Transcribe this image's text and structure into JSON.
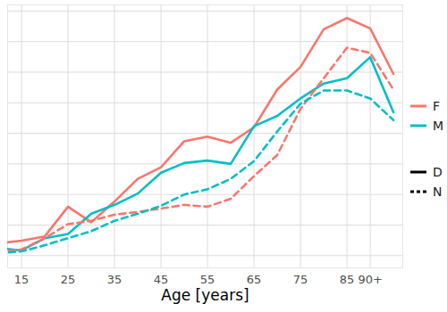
{
  "chart_data": {
    "type": "line",
    "x_label": "Age [years]",
    "x": [
      10,
      15,
      20,
      25,
      30,
      35,
      40,
      45,
      50,
      55,
      60,
      65,
      70,
      75,
      80,
      85,
      90,
      95
    ],
    "xlim": [
      12,
      97
    ],
    "xticks": [
      15,
      25,
      35,
      45,
      55,
      65,
      75,
      85,
      {
        "value": 90,
        "label": "90+"
      }
    ],
    "ylim": [
      -0.4,
      8.2
    ],
    "yticks": [
      0,
      1,
      2,
      3,
      4,
      5,
      6,
      7,
      8
    ],
    "tick_labels": "x",
    "grid": true,
    "legend": "right",
    "series": [
      {
        "name": "F",
        "color": "#F8766D",
        "line_style": "solid",
        "values": [
          0.4,
          0.49,
          0.63,
          1.6,
          1.09,
          1.77,
          2.51,
          2.89,
          3.74,
          3.89,
          3.69,
          4.2,
          5.43,
          6.17,
          7.4,
          7.77,
          7.43,
          5.94
        ]
      },
      {
        "name": "M",
        "color": "#00BFC4",
        "line_style": "solid",
        "values": [
          0.25,
          0.17,
          0.57,
          0.71,
          1.37,
          1.66,
          2.03,
          2.71,
          3.03,
          3.11,
          3.0,
          4.23,
          4.57,
          5.14,
          5.63,
          5.8,
          6.49,
          4.69
        ]
      },
      {
        "name": "F",
        "color": "#F8766D",
        "line_style": "dashed",
        "values": [
          0.12,
          0.2,
          0.57,
          1.03,
          1.14,
          1.34,
          1.43,
          1.54,
          1.66,
          1.6,
          1.86,
          2.6,
          3.29,
          4.8,
          5.8,
          6.8,
          6.63,
          5.43
        ]
      },
      {
        "name": "M",
        "color": "#00BFC4",
        "line_style": "dashed",
        "values": [
          0.08,
          0.14,
          0.34,
          0.57,
          0.8,
          1.14,
          1.37,
          1.63,
          2.0,
          2.17,
          2.51,
          3.09,
          4.06,
          4.97,
          5.4,
          5.4,
          5.14,
          4.43
        ]
      }
    ],
    "linetypes": [
      {
        "name": "D",
        "line_style": "solid"
      },
      {
        "name": "N",
        "line_style": "dashed"
      }
    ]
  }
}
